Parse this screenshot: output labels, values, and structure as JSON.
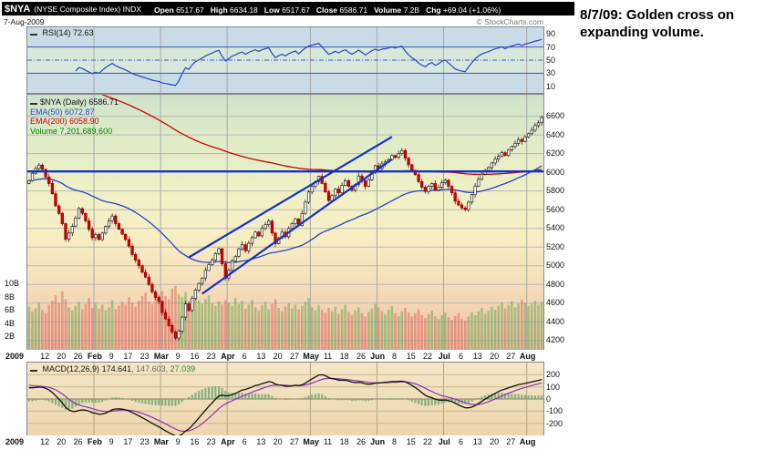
{
  "annotation": {
    "text": "8/7/09: Golden cross on expanding volume."
  },
  "header": {
    "symbol": "$NYA",
    "name": "(NYSE Composite Index) INDX",
    "date": "7-Aug-2009",
    "copyright": "© StockCharts.com",
    "fields": [
      {
        "label": "Open",
        "value": "6517.67"
      },
      {
        "label": "High",
        "value": "6634.18"
      },
      {
        "label": "Low",
        "value": "6517.67"
      },
      {
        "label": "Close",
        "value": "6586.71"
      },
      {
        "label": "Volume",
        "value": "7.2B"
      },
      {
        "label": "Chg",
        "value": "+69.04 (+1.06%)"
      }
    ]
  },
  "rsi": {
    "legend_label": "RSI(14)",
    "legend_value": "72.63",
    "levels": [
      90,
      70,
      50,
      30,
      10
    ]
  },
  "main": {
    "legend": [
      {
        "label": "$NYA (Daily)",
        "value": "6586.71",
        "color": "#111111"
      },
      {
        "label": "EMA(50)",
        "value": "6072.87",
        "color": "#2244cc"
      },
      {
        "label": "EMA(200)",
        "value": "6058.90",
        "color": "#cc0000"
      },
      {
        "label": "Volume",
        "value": "7,201,689,600",
        "color": "#008800"
      }
    ],
    "price_ticks": [
      6600,
      6400,
      6200,
      6000,
      5800,
      5600,
      5400,
      5200,
      5000,
      4800,
      4600,
      4400,
      4200
    ],
    "volume_ticks": [
      "10B",
      "8B",
      "6B",
      "4B",
      "2B"
    ]
  },
  "macd": {
    "legend_label": "MACD(12,26,9)",
    "values": [
      "174.641",
      "147.603",
      "27.039"
    ],
    "value_colors": [
      "#111111",
      "#666666",
      "#2e8b2e"
    ],
    "levels": [
      200,
      100,
      0,
      -100,
      -200
    ]
  },
  "x_labels": [
    "2009",
    "12",
    "20",
    "26",
    "Feb",
    "9",
    "17",
    "23",
    "Mar",
    "9",
    "16",
    "23",
    "Apr",
    "6",
    "13",
    "20",
    "27",
    "May",
    "11",
    "18",
    "26",
    "Jun",
    "8",
    "15",
    "22",
    "Jul",
    "6",
    "13",
    "20",
    "27",
    "Aug"
  ],
  "chart_data": {
    "type": "candlestick",
    "symbol": "$NYA",
    "title": "$NYA (NYSE Composite Index) INDX, Daily, Jan 2 - Aug 7 2009",
    "last_bar": {
      "open": 6517.67,
      "high": 6634.18,
      "low": 6517.67,
      "close": 6586.71,
      "volume_billions": 7.2
    },
    "indicators": {
      "rsi_period": 14,
      "ema_fast": 50,
      "ema_slow": 200,
      "macd": [
        12,
        26,
        9
      ],
      "rsi_last": 72.63,
      "ema50_last": 6072.87,
      "ema200_last": 6058.9,
      "macd_last": 174.641,
      "signal_last": 147.603,
      "hist_last": 27.039
    },
    "price_axis": {
      "min": 4100,
      "max": 6830,
      "grid_step": 200
    },
    "volume_axis_billions": {
      "min": 0,
      "max": 10
    },
    "macd_axis": {
      "min": -300,
      "max": 300
    },
    "label_every": 5,
    "month_tick_indices": [
      20,
      40,
      60,
      85,
      105,
      125,
      150
    ],
    "annotations": {
      "color": "#1133cc",
      "horizontal_line_price": 6010,
      "channel": {
        "upper": [
          [
            48,
            5090
          ],
          [
            109,
            6380
          ]
        ],
        "lower": [
          [
            52,
            4700
          ],
          [
            109,
            6140
          ]
        ]
      }
    },
    "closes": [
      5911,
      5990,
      6040,
      6077,
      6030,
      5950,
      5880,
      5770,
      5640,
      5560,
      5450,
      5283,
      5350,
      5420,
      5510,
      5611,
      5560,
      5480,
      5390,
      5300,
      5333,
      5280,
      5350,
      5420,
      5480,
      5532,
      5450,
      5390,
      5337,
      5280,
      5210,
      5120,
      5060,
      5000,
      4930,
      4878,
      4800,
      4720,
      4660,
      4617,
      4500,
      4430,
      4360,
      4290,
      4226,
      4300,
      4450,
      4590,
      4520,
      4650,
      4740,
      4810,
      4868,
      4950,
      5010,
      5060,
      5130,
      5182,
      5020,
      4868,
      4950,
      5050,
      5100,
      5180,
      5224,
      5160,
      5240,
      5300,
      5361,
      5320,
      5400,
      5440,
      5478,
      5350,
      5236,
      5300,
      5360,
      5310,
      5398,
      5450,
      5500,
      5430,
      5560,
      5680,
      5789,
      5850,
      5900,
      5956,
      5880,
      5790,
      5697,
      5750,
      5820,
      5780,
      5860,
      5910,
      5850,
      5808,
      5870,
      5960,
      5910,
      5850,
      5920,
      6000,
      6070,
      6040,
      6090,
      6110,
      6136,
      6180,
      6160,
      6200,
      6232,
      6150,
      6080,
      6020,
      5975,
      5900,
      5840,
      5794,
      5850,
      5880,
      5810,
      5838,
      5890,
      5914,
      5850,
      5780,
      5690,
      5650,
      5618,
      5600,
      5680,
      5760,
      5850,
      5924,
      5980,
      6020,
      6050,
      6100,
      6141,
      6170,
      6210,
      6180,
      6240,
      6276,
      6310,
      6350,
      6330,
      6380,
      6413,
      6450,
      6500,
      6530,
      6587
    ],
    "volumes_billions": [
      6.5,
      5.8,
      6.2,
      7.1,
      6.0,
      5.5,
      6.8,
      7.4,
      8.2,
      7.0,
      8.8,
      7.6,
      6.4,
      5.9,
      6.6,
      7.2,
      6.1,
      6.9,
      7.8,
      6.3,
      7.0,
      6.2,
      6.8,
      5.9,
      6.4,
      7.5,
      6.1,
      6.6,
      7.2,
      6.8,
      7.9,
      7.1,
      6.5,
      7.4,
      8.1,
      8.6,
      7.3,
      6.9,
      7.7,
      8.3,
      8.8,
      8.1,
      7.6,
      9.2,
      9.6,
      8.4,
      7.9,
      8.7,
      7.2,
      7.8,
      8.5,
      7.4,
      6.9,
      7.6,
      8.2,
      7.0,
      6.6,
      7.3,
      6.8,
      7.5,
      7.1,
      6.6,
      7.8,
      6.9,
      7.4,
      6.2,
      6.8,
      7.5,
      6.4,
      5.9,
      6.7,
      7.2,
      6.1,
      6.9,
      7.6,
      6.3,
      5.8,
      6.5,
      7.0,
      6.2,
      6.8,
      6.1,
      6.6,
      7.2,
      7.8,
      6.4,
      5.9,
      6.7,
      6.0,
      5.6,
      6.3,
      5.8,
      6.5,
      5.4,
      6.1,
      6.8,
      5.7,
      5.2,
      5.9,
      6.4,
      5.5,
      5.0,
      5.7,
      6.2,
      6.9,
      6.4,
      5.8,
      5.3,
      6.0,
      6.6,
      5.5,
      5.1,
      5.8,
      6.3,
      5.6,
      5.0,
      5.5,
      6.1,
      5.2,
      4.8,
      5.4,
      5.9,
      5.0,
      4.6,
      5.2,
      5.6,
      4.9,
      4.5,
      5.1,
      5.5,
      4.7,
      4.4,
      5.0,
      5.6,
      5.2,
      5.8,
      6.3,
      5.4,
      5.9,
      6.5,
      6.0,
      6.6,
      7.1,
      6.2,
      6.7,
      7.3,
      6.4,
      6.9,
      7.5,
      7.0,
      6.6,
      6.9,
      7.4,
      6.8,
      7.2
    ]
  }
}
